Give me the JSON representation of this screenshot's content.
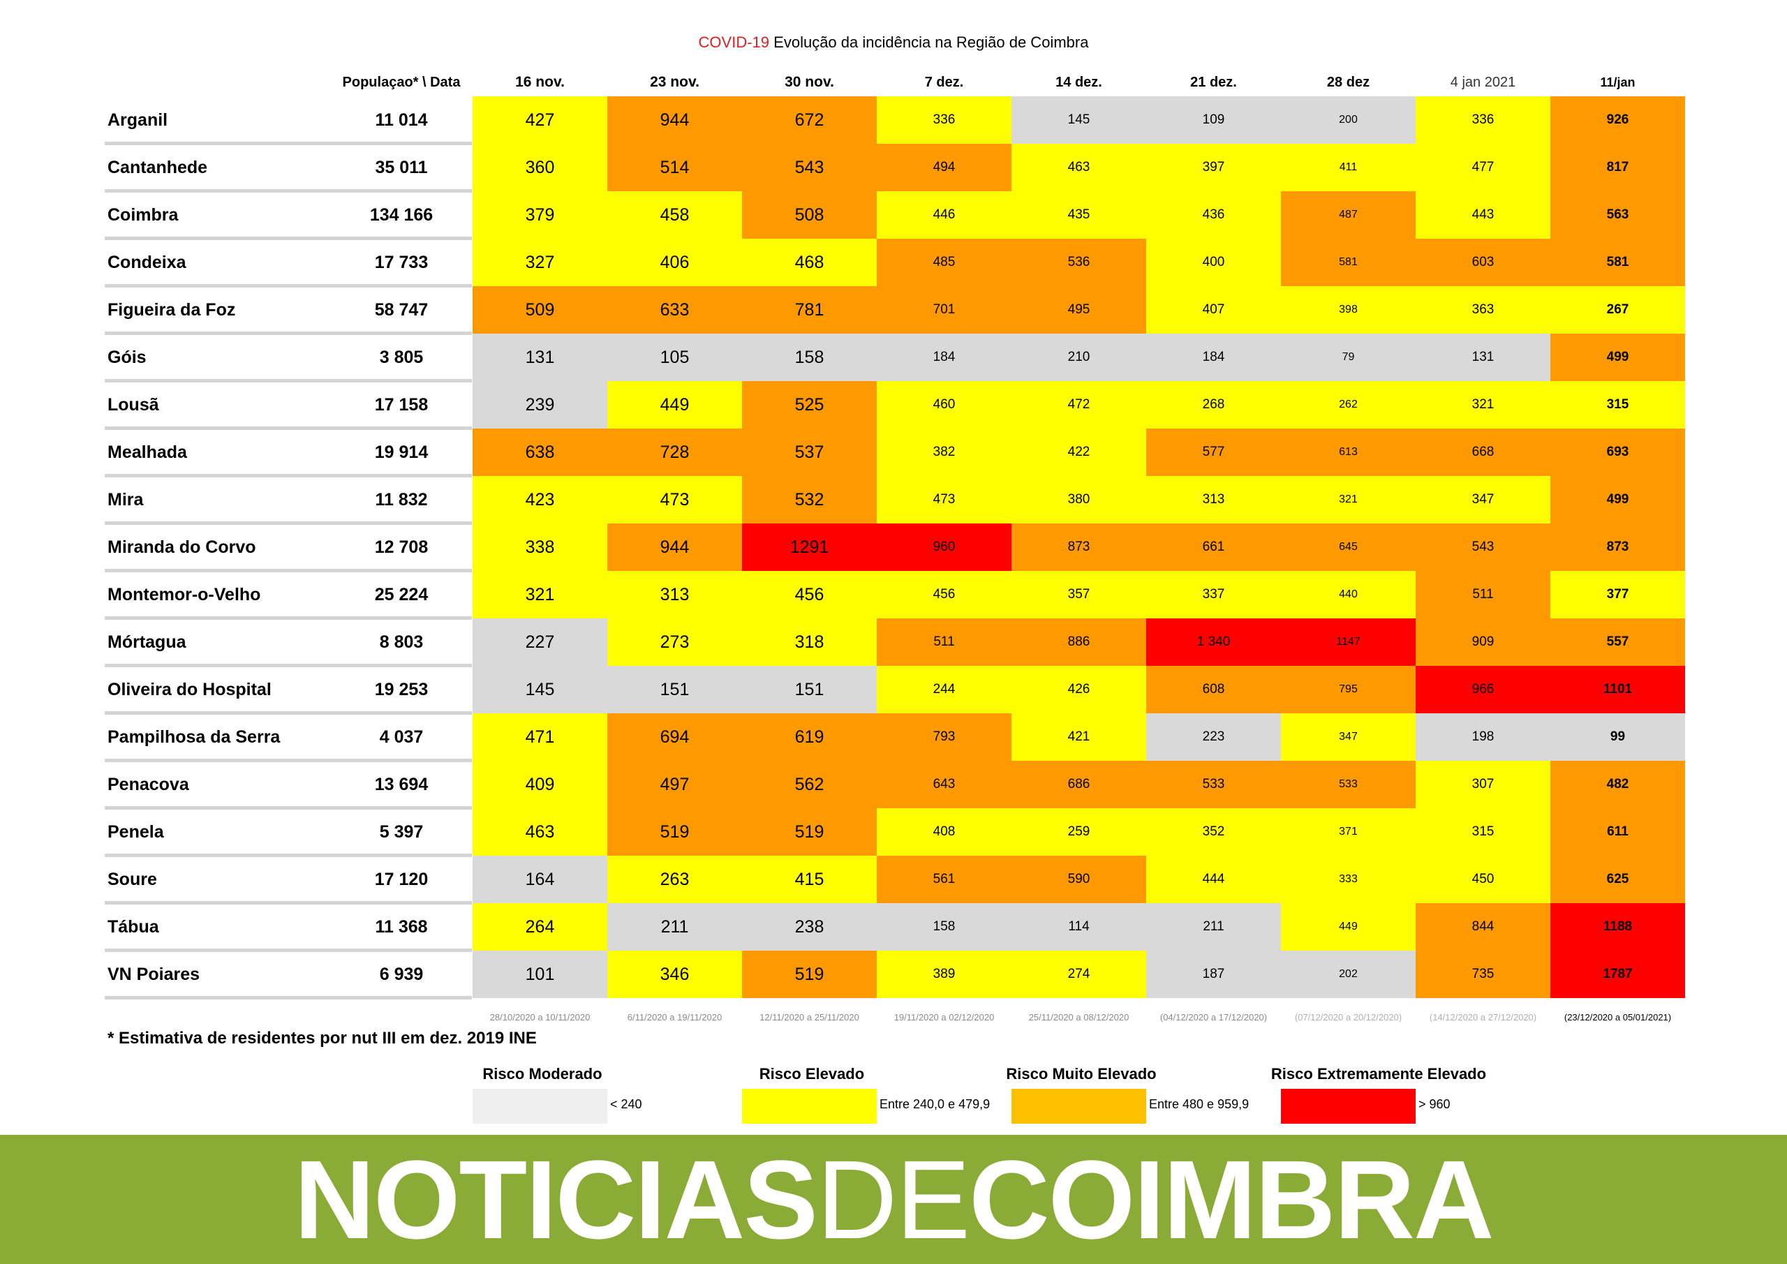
{
  "chart_data": {
    "type": "table",
    "title_prefix": "COVID-19",
    "title": "Evolução da incidência na Região de Coimbra",
    "population_header": "Populaçao* \\ Data",
    "columns": [
      "16 nov.",
      "23 nov.",
      "30 nov.",
      "7 dez.",
      "14 dez.",
      "21 dez.",
      "28 dez",
      "4 jan 2021",
      "11/jan"
    ],
    "periods": [
      "28/10/2020 a 10/11/2020",
      "6/11/2020 a 19/11/2020",
      "12/11/2020 a 25/11/2020",
      "19/11/2020 a 02/12/2020",
      "25/11/2020 a 08/12/2020",
      "(04/12/2020 a 17/12/2020)",
      "(07/12/2020 a 20/12/2020)",
      "(14/12/2020 a 27/12/2020)",
      "(23/12/2020 a 05/01/2021)"
    ],
    "rows": [
      {
        "name": "Arganil",
        "population": "11 014",
        "values": [
          "427",
          "944",
          "672",
          "336",
          "145",
          "109",
          "200",
          "336",
          "926"
        ]
      },
      {
        "name": "Cantanhede",
        "population": "35 011",
        "values": [
          "360",
          "514",
          "543",
          "494",
          "463",
          "397",
          "411",
          "477",
          "817"
        ]
      },
      {
        "name": "Coimbra",
        "population": "134 166",
        "values": [
          "379",
          "458",
          "508",
          "446",
          "435",
          "436",
          "487",
          "443",
          "563"
        ]
      },
      {
        "name": "Condeixa",
        "population": "17 733",
        "values": [
          "327",
          "406",
          "468",
          "485",
          "536",
          "400",
          "581",
          "603",
          "581"
        ]
      },
      {
        "name": "Figueira da Foz",
        "population": "58 747",
        "values": [
          "509",
          "633",
          "781",
          "701",
          "495",
          "407",
          "398",
          "363",
          "267"
        ]
      },
      {
        "name": "Góis",
        "population": "3 805",
        "values": [
          "131",
          "105",
          "158",
          "184",
          "210",
          "184",
          "79",
          "131",
          "499"
        ]
      },
      {
        "name": "Lousã",
        "population": "17 158",
        "values": [
          "239",
          "449",
          "525",
          "460",
          "472",
          "268",
          "262",
          "321",
          "315"
        ]
      },
      {
        "name": "Mealhada",
        "population": "19 914",
        "values": [
          "638",
          "728",
          "537",
          "382",
          "422",
          "577",
          "613",
          "668",
          "693"
        ]
      },
      {
        "name": "Mira",
        "population": "11 832",
        "values": [
          "423",
          "473",
          "532",
          "473",
          "380",
          "313",
          "321",
          "347",
          "499"
        ]
      },
      {
        "name": "Miranda do Corvo",
        "population": "12 708",
        "values": [
          "338",
          "944",
          "1291",
          "960",
          "873",
          "661",
          "645",
          "543",
          "873"
        ]
      },
      {
        "name": "Montemor-o-Velho",
        "population": "25 224",
        "values": [
          "321",
          "313",
          "456",
          "456",
          "357",
          "337",
          "440",
          "511",
          "377"
        ]
      },
      {
        "name": "Mórtagua",
        "population": "8 803",
        "values": [
          "227",
          "273",
          "318",
          "511",
          "886",
          "1 340",
          "1147",
          "909",
          "557"
        ]
      },
      {
        "name": "Oliveira do Hospital",
        "population": "19 253",
        "values": [
          "145",
          "151",
          "151",
          "244",
          "426",
          "608",
          "795",
          "966",
          "1101"
        ]
      },
      {
        "name": "Pampilhosa da Serra",
        "population": "4 037",
        "values": [
          "471",
          "694",
          "619",
          "793",
          "421",
          "223",
          "347",
          "198",
          "99"
        ]
      },
      {
        "name": "Penacova",
        "population": "13 694",
        "values": [
          "409",
          "497",
          "562",
          "643",
          "686",
          "533",
          "533",
          "307",
          "482"
        ]
      },
      {
        "name": "Penela",
        "population": "5 397",
        "values": [
          "463",
          "519",
          "519",
          "408",
          "259",
          "352",
          "371",
          "315",
          "611"
        ]
      },
      {
        "name": "Soure",
        "population": "17 120",
        "values": [
          "164",
          "263",
          "415",
          "561",
          "590",
          "444",
          "333",
          "450",
          "625"
        ]
      },
      {
        "name": "Tábua",
        "population": "11 368",
        "values": [
          "264",
          "211",
          "238",
          "158",
          "114",
          "211",
          "449",
          "844",
          "1188"
        ]
      },
      {
        "name": "VN Poiares",
        "population": "6 939",
        "values": [
          "101",
          "346",
          "519",
          "389",
          "274",
          "187",
          "202",
          "735",
          "1787"
        ]
      }
    ],
    "risk_levels": [
      {
        "name": "Risco Moderado",
        "range": "< 240",
        "color": "#d9d9d9",
        "swatch": "#efefef"
      },
      {
        "name": "Risco Elevado",
        "range": "Entre 240,0 e 479,9",
        "color": "#ffff00",
        "swatch": "#ffff00"
      },
      {
        "name": "Risco Muito Elevado",
        "range": "Entre 480 e 959,9",
        "color": "#ff9900",
        "swatch": "#ffc000"
      },
      {
        "name": "Risco Extremamente Elevado",
        "range": "> 960",
        "color": "#ff0000",
        "swatch": "#ff0000"
      }
    ],
    "cell_levels": [
      [
        1,
        2,
        2,
        1,
        0,
        0,
        0,
        1,
        2
      ],
      [
        1,
        2,
        2,
        2,
        1,
        1,
        1,
        1,
        2
      ],
      [
        1,
        1,
        2,
        1,
        1,
        1,
        2,
        1,
        2
      ],
      [
        1,
        1,
        1,
        2,
        2,
        1,
        2,
        2,
        2
      ],
      [
        2,
        2,
        2,
        2,
        2,
        1,
        1,
        1,
        1
      ],
      [
        0,
        0,
        0,
        0,
        0,
        0,
        0,
        0,
        2
      ],
      [
        0,
        1,
        2,
        1,
        1,
        1,
        1,
        1,
        1
      ],
      [
        2,
        2,
        2,
        1,
        1,
        2,
        2,
        2,
        2
      ],
      [
        1,
        1,
        2,
        1,
        1,
        1,
        1,
        1,
        2
      ],
      [
        1,
        2,
        3,
        3,
        2,
        2,
        2,
        2,
        2
      ],
      [
        1,
        1,
        1,
        1,
        1,
        1,
        1,
        2,
        1
      ],
      [
        0,
        1,
        1,
        2,
        2,
        3,
        3,
        2,
        2
      ],
      [
        0,
        0,
        0,
        1,
        1,
        2,
        2,
        3,
        3
      ],
      [
        1,
        2,
        2,
        2,
        1,
        0,
        1,
        0,
        0
      ],
      [
        1,
        2,
        2,
        2,
        2,
        2,
        2,
        1,
        2
      ],
      [
        1,
        2,
        2,
        1,
        1,
        1,
        1,
        1,
        2
      ],
      [
        0,
        1,
        1,
        2,
        2,
        1,
        1,
        1,
        2
      ],
      [
        1,
        0,
        0,
        0,
        0,
        0,
        1,
        2,
        3
      ],
      [
        0,
        1,
        2,
        1,
        1,
        0,
        0,
        2,
        3
      ]
    ]
  },
  "footnote": "* Estimativa de residentes por nut III em dez. 2019 INE",
  "banner": {
    "part1": "NOTICIAS",
    "part2": "DE",
    "part3": "COIMBRA",
    "color": "#8aab35"
  }
}
